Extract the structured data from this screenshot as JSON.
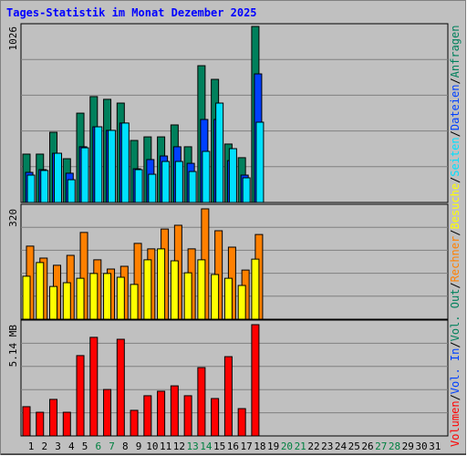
{
  "chart_data": [
    {
      "type": "bar",
      "title": "Tages-Statistik im Monat Dezember 2025",
      "categories": [
        "1",
        "2",
        "3",
        "4",
        "5",
        "6",
        "7",
        "8",
        "9",
        "10",
        "11",
        "12",
        "13",
        "14",
        "15",
        "16",
        "17",
        "18",
        "19",
        "20",
        "21",
        "22",
        "23",
        "24",
        "25",
        "26",
        "27",
        "28",
        "29",
        "30",
        "31"
      ],
      "highlight_categories": [
        5,
        6,
        12,
        13,
        19,
        20,
        26,
        27
      ],
      "highlight_color": "#008040",
      "category_color": "#000000",
      "legend_separator": "/",
      "ylim": [
        0,
        1026
      ],
      "yticks": [
        1026
      ],
      "grid_divisions": 5,
      "series": [
        {
          "name": "Anfragen",
          "color": "#00805c",
          "values": [
            278,
            278,
            406,
            251,
            518,
            615,
            599,
            577,
            358,
            379,
            379,
            449,
            321,
            796,
            716,
            337,
            257,
            1026,
            null,
            null,
            null,
            null,
            null,
            null,
            null,
            null,
            null,
            null,
            null,
            null,
            null
          ]
        },
        {
          "name": "Dateien",
          "color": "#0040ff",
          "values": [
            171,
            187,
            283,
            166,
            321,
            438,
            417,
            460,
            192,
            246,
            267,
            321,
            224,
            481,
            481,
            240,
            155,
            748,
            null,
            null,
            null,
            null,
            null,
            null,
            null,
            null,
            null,
            null,
            null,
            null,
            null
          ]
        },
        {
          "name": "Seiten",
          "color": "#00e0ff",
          "values": [
            155,
            182,
            283,
            128,
            315,
            438,
            417,
            460,
            187,
            160,
            235,
            235,
            176,
            294,
            577,
            310,
            139,
            465,
            null,
            null,
            null,
            null,
            null,
            null,
            null,
            null,
            null,
            null,
            null,
            null,
            null
          ]
        }
      ]
    },
    {
      "type": "bar",
      "ylim": [
        0,
        320
      ],
      "yticks": [
        320
      ],
      "grid_divisions": 5,
      "series": [
        {
          "name": "Rechner",
          "color": "#ff8000",
          "values": [
            211,
            176,
            155,
            184,
            251,
            171,
            144,
            152,
            219,
            203,
            261,
            272,
            203,
            320,
            256,
            208,
            141,
            245,
            null,
            null,
            null,
            null,
            null,
            null,
            null,
            null,
            null,
            null,
            null,
            null,
            null
          ]
        },
        {
          "name": "Besuche",
          "color": "#ffff00",
          "values": [
            123,
            163,
            93,
            104,
            117,
            131,
            131,
            120,
            99,
            171,
            203,
            168,
            133,
            171,
            128,
            117,
            96,
            173,
            null,
            null,
            null,
            null,
            null,
            null,
            null,
            null,
            null,
            null,
            null,
            null,
            null
          ]
        }
      ]
    },
    {
      "type": "bar",
      "ylim": [
        0,
        5.14
      ],
      "yticks": [
        {
          "value": 5.14,
          "label": "5.14 MB"
        }
      ],
      "grid_divisions": 5,
      "series": [
        {
          "name": "Volumen",
          "color": "#ff0000",
          "values": [
            1.32,
            1.06,
            1.66,
            1.06,
            3.7,
            4.55,
            2.12,
            4.46,
            1.15,
            1.83,
            2.04,
            2.29,
            1.83,
            3.14,
            1.7,
            3.65,
            1.23,
            5.14,
            null,
            null,
            null,
            null,
            null,
            null,
            null,
            null,
            null,
            null,
            null,
            null,
            null
          ]
        },
        {
          "name": "Vol. In",
          "color": "#0040ff",
          "values": [
            null,
            null,
            null,
            null,
            null,
            null,
            null,
            null,
            null,
            null,
            null,
            null,
            null,
            null,
            null,
            null,
            null,
            null,
            null,
            null,
            null,
            null,
            null,
            null,
            null,
            null,
            null,
            null,
            null,
            null,
            null
          ]
        },
        {
          "name": "Vol. Out",
          "color": "#00805c",
          "values": [
            null,
            null,
            null,
            null,
            null,
            null,
            null,
            null,
            null,
            null,
            null,
            null,
            null,
            null,
            null,
            null,
            null,
            null,
            null,
            null,
            null,
            null,
            null,
            null,
            null,
            null,
            null,
            null,
            null,
            null,
            null
          ]
        }
      ]
    }
  ]
}
